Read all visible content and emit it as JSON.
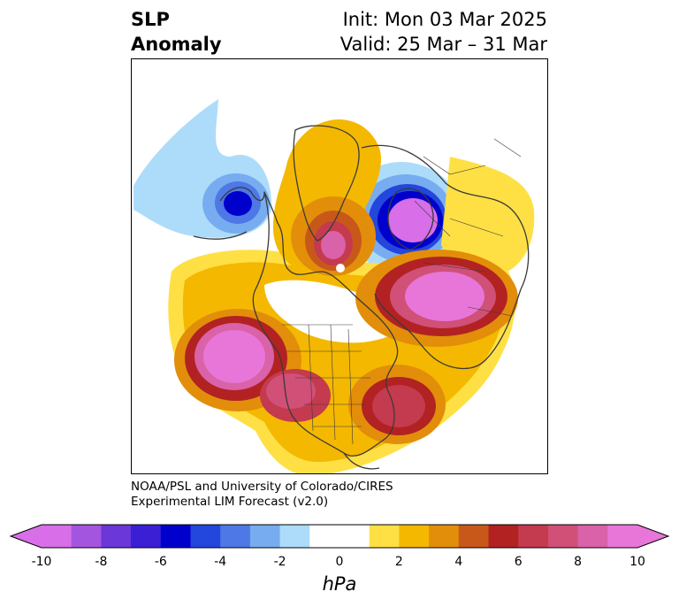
{
  "title": {
    "left_line1": "SLP",
    "left_line2": "Anomaly",
    "init": "Init: Mon 03 Mar 2025",
    "valid": "Valid: 25 Mar – 31 Mar"
  },
  "credit": {
    "line1": "NOAA/PSL and University of Colorado/CIRES",
    "line2": "Experimental LIM Forecast (v2.0)"
  },
  "colorbar": {
    "units": "hPa",
    "ticks": [
      "-10",
      "-8",
      "-6",
      "-4",
      "-2",
      "0",
      "2",
      "4",
      "6",
      "8",
      "10"
    ],
    "colors": [
      "#d86ee8",
      "#a455e0",
      "#6b37d9",
      "#3a1fd4",
      "#0000cd",
      "#2346dc",
      "#4d78e6",
      "#78acf0",
      "#acdcfa",
      "#ffffff",
      "#ffffff",
      "#fee045",
      "#f4b800",
      "#e28e0a",
      "#c8581a",
      "#b22222",
      "#c43a4e",
      "#d05078",
      "#da62a8",
      "#e876d8"
    ]
  },
  "map": {
    "projection": "polar-stereographic",
    "region": "Northern Hemisphere",
    "colors": {
      "neg_light": "#acdcfa",
      "neg_mid": "#78acf0",
      "neg_blue": "#4d78e6",
      "neg_royal": "#2346dc",
      "neg_deep": "#0000cd",
      "neg_purple": "#6b37d9",
      "neg_violet": "#d86ee8",
      "pos_yellow": "#fee045",
      "pos_gold": "#f4b800",
      "pos_orange": "#e28e0a",
      "pos_burnt": "#c8581a",
      "pos_red": "#b22222",
      "pos_crimson": "#c43a4e",
      "pos_rose": "#d05078",
      "pos_pink": "#da62a8",
      "pos_magenta": "#e876d8",
      "coast": "#3a3a3a"
    }
  }
}
